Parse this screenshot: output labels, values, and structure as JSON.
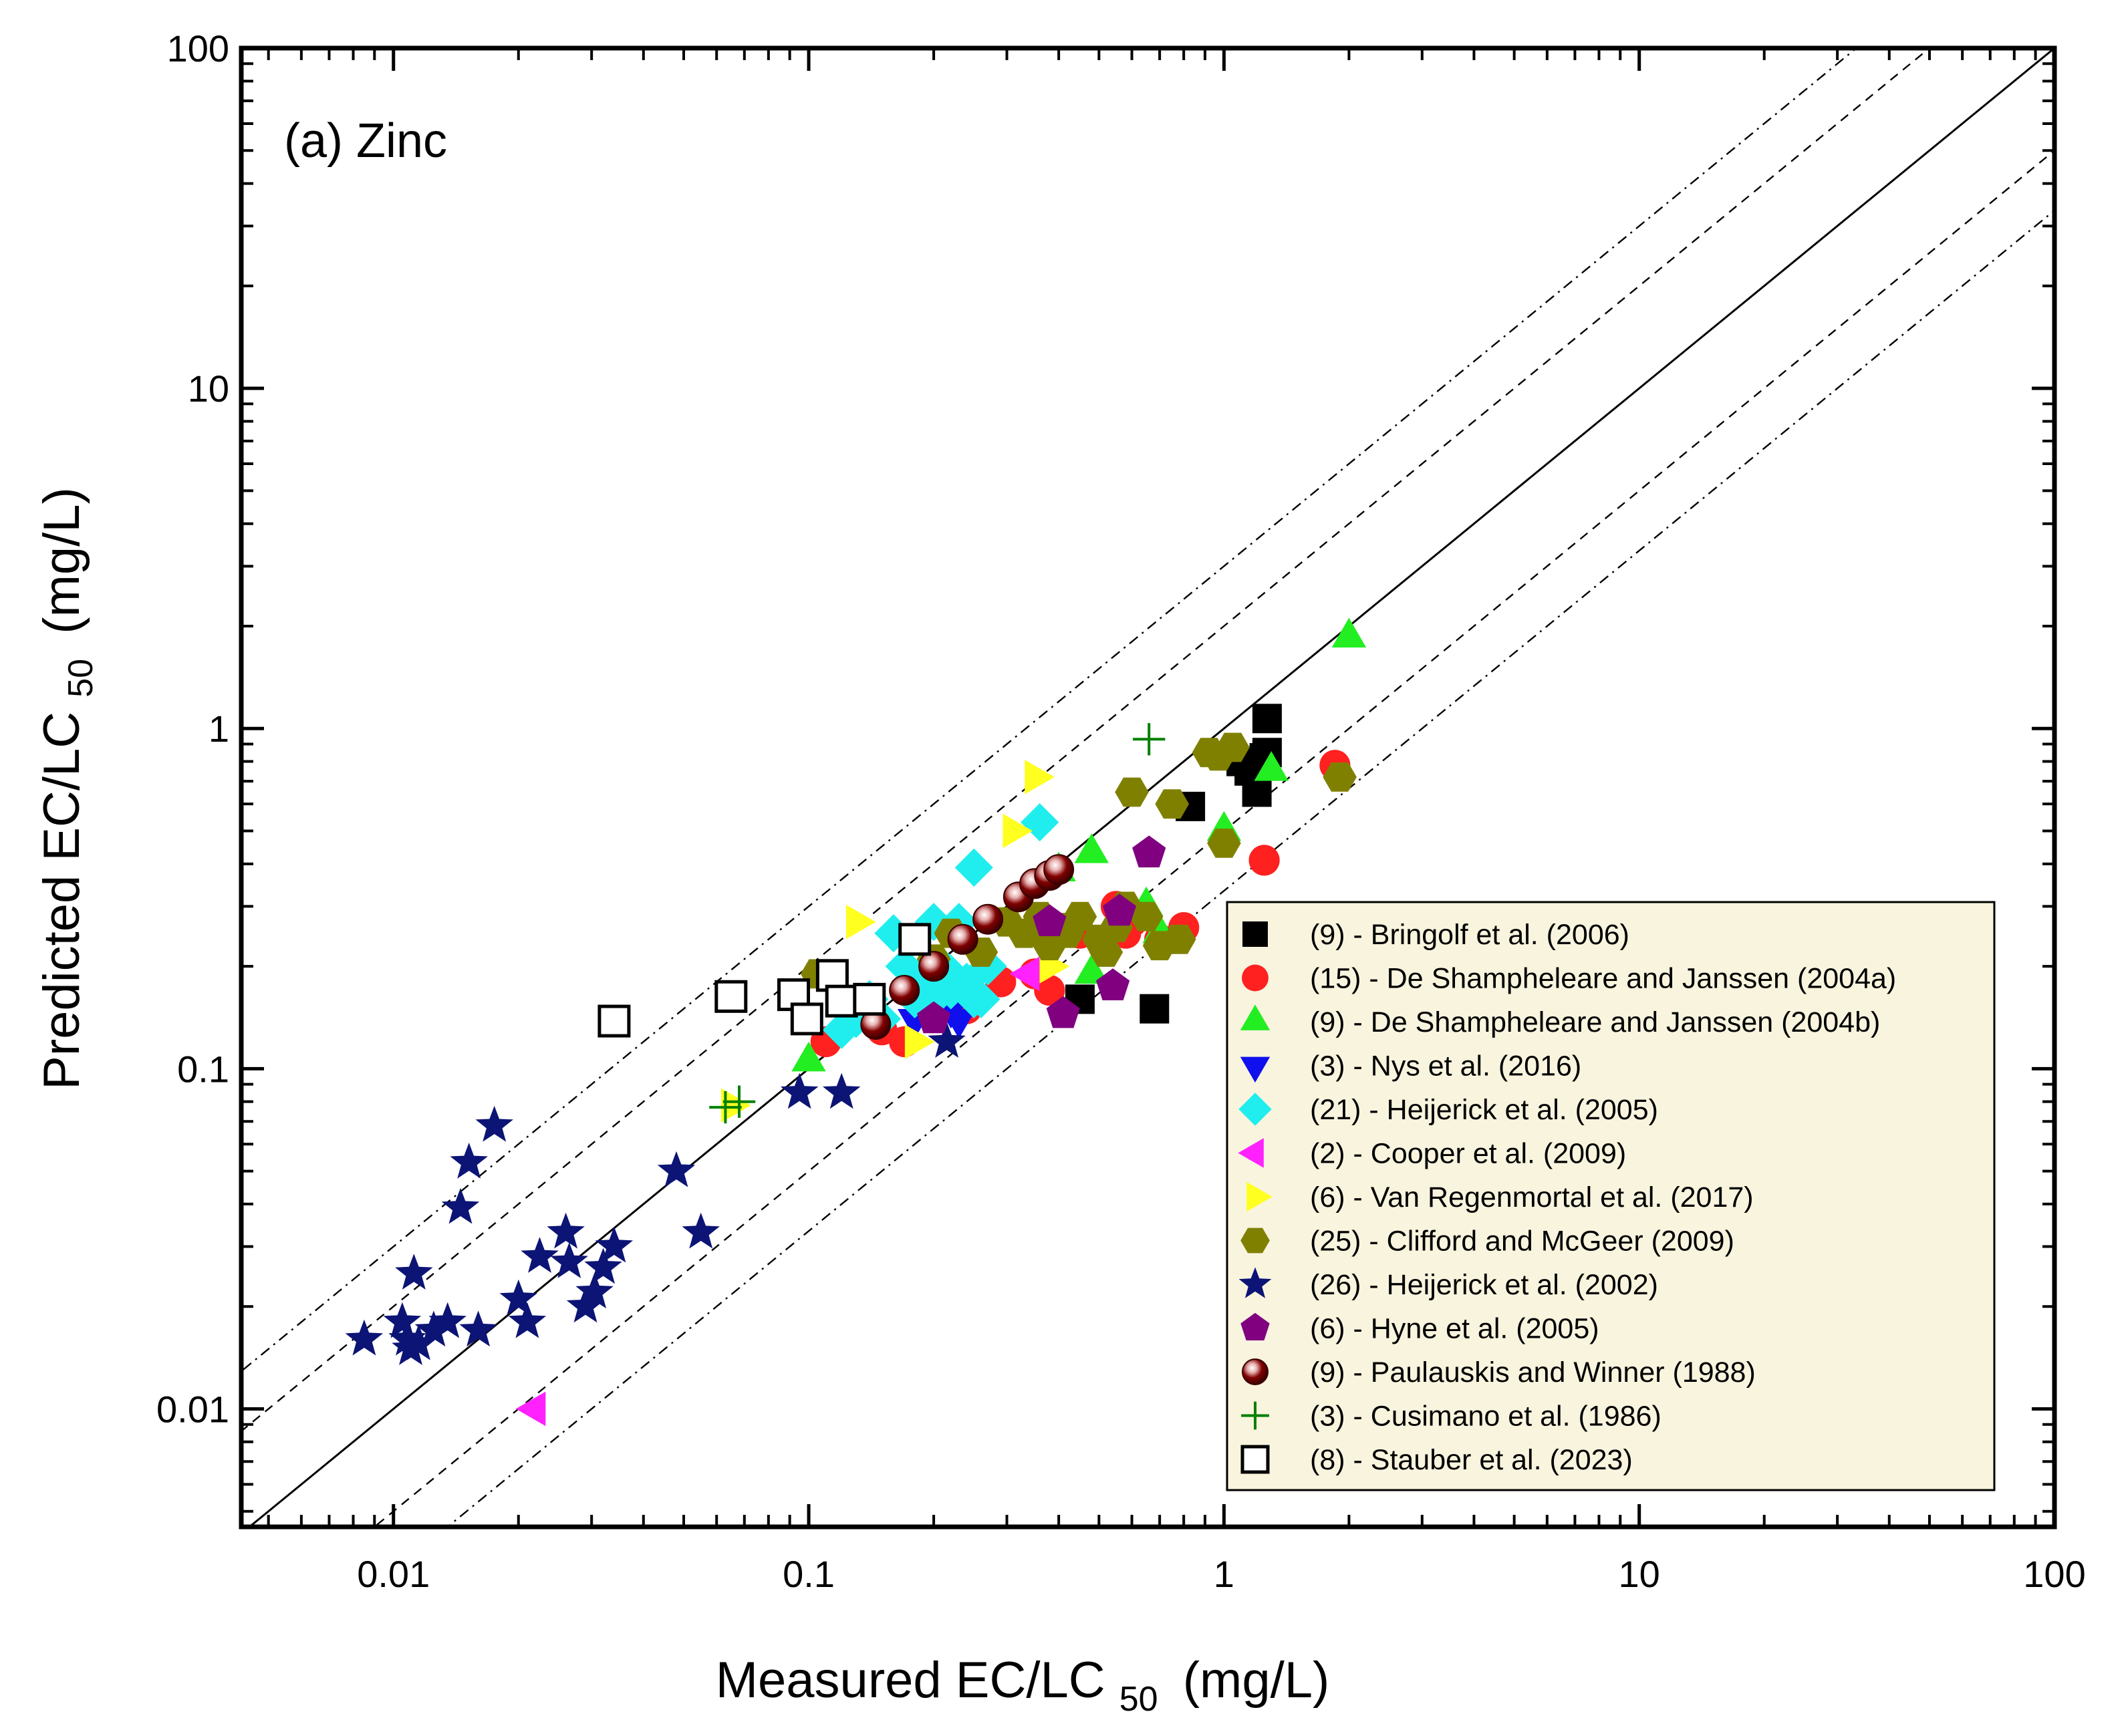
{
  "chart_data": {
    "type": "scatter",
    "title": "",
    "panel_label": "(a) Zinc",
    "xlabel": {
      "main": "Measured EC/LC",
      "sub": "50",
      "unit": "(mg/L)"
    },
    "ylabel": {
      "main": "Predicted EC/LC",
      "sub": "50",
      "unit": "(mg/L)"
    },
    "xscale": "log",
    "yscale": "log",
    "xlim": [
      0.0043,
      100
    ],
    "ylim": [
      0.0045,
      100
    ],
    "x_ticks": [
      {
        "value": 0.01,
        "label": "0.01"
      },
      {
        "value": 0.1,
        "label": "0.1"
      },
      {
        "value": 1,
        "label": "1"
      },
      {
        "value": 10,
        "label": "10"
      },
      {
        "value": 100,
        "label": "100"
      }
    ],
    "y_ticks": [
      {
        "value": 0.01,
        "label": "0.01"
      },
      {
        "value": 0.1,
        "label": "0.1"
      },
      {
        "value": 1,
        "label": "1"
      },
      {
        "value": 10,
        "label": "10"
      },
      {
        "value": 100,
        "label": "100"
      }
    ],
    "grid": false,
    "legend_position": "bottom-right",
    "legend_background": "#f8f4de",
    "reference_lines": [
      {
        "name": "1:1 line",
        "factor": 1,
        "style": "solid"
      },
      {
        "name": "factor 2 upper",
        "factor": 2,
        "style": "dashed"
      },
      {
        "name": "factor 2 lower",
        "factor": 0.5,
        "style": "dashed"
      },
      {
        "name": "factor 3 upper",
        "factor": 3,
        "style": "dashdot"
      },
      {
        "name": "factor 3 lower",
        "factor": 0.3333,
        "style": "dashdot"
      }
    ],
    "series": [
      {
        "name": "(9) - Bringolf et al. (2006)",
        "marker": "square",
        "color": "#000000",
        "points": [
          [
            0.45,
            0.16
          ],
          [
            0.68,
            0.15
          ],
          [
            0.83,
            0.59
          ],
          [
            1.1,
            0.8
          ],
          [
            1.15,
            0.75
          ],
          [
            1.2,
            0.65
          ],
          [
            1.27,
            1.07
          ],
          [
            1.27,
            0.85
          ],
          [
            1.25,
            0.82
          ]
        ]
      },
      {
        "name": "(15) - De Shampheleare and Janssen (2004a)",
        "marker": "circle",
        "color": "#ff2020",
        "points": [
          [
            0.11,
            0.12
          ],
          [
            0.15,
            0.13
          ],
          [
            0.17,
            0.12
          ],
          [
            0.24,
            0.15
          ],
          [
            0.29,
            0.18
          ],
          [
            0.35,
            0.19
          ],
          [
            0.38,
            0.17
          ],
          [
            0.45,
            0.25
          ],
          [
            0.55,
            0.3
          ],
          [
            0.58,
            0.25
          ],
          [
            0.6,
            0.27
          ],
          [
            0.7,
            0.24
          ],
          [
            0.8,
            0.26
          ],
          [
            1.25,
            0.41
          ],
          [
            1.85,
            0.78
          ]
        ]
      },
      {
        "name": "(9) - De Shampheleare and Janssen (2004b)",
        "marker": "triangle-up",
        "color": "#22ee22",
        "points": [
          [
            0.1,
            0.105
          ],
          [
            0.4,
            0.38
          ],
          [
            0.48,
            0.43
          ],
          [
            0.48,
            0.19
          ],
          [
            0.65,
            0.3
          ],
          [
            0.7,
            0.25
          ],
          [
            1.0,
            0.5
          ],
          [
            1.3,
            0.75
          ],
          [
            2.0,
            1.85
          ]
        ]
      },
      {
        "name": "(3) - Nys et al. (2016)",
        "marker": "triangle-down",
        "color": "#1010ee",
        "points": [
          [
            0.18,
            0.14
          ],
          [
            0.22,
            0.15
          ],
          [
            0.23,
            0.14
          ]
        ]
      },
      {
        "name": "(21) - Heijerick et al. (2005)",
        "marker": "diamond",
        "color": "#20eeee",
        "points": [
          [
            0.12,
            0.13
          ],
          [
            0.13,
            0.14
          ],
          [
            0.14,
            0.16
          ],
          [
            0.15,
            0.14
          ],
          [
            0.16,
            0.25
          ],
          [
            0.17,
            0.2
          ],
          [
            0.18,
            0.16
          ],
          [
            0.19,
            0.18
          ],
          [
            0.2,
            0.16
          ],
          [
            0.21,
            0.2
          ],
          [
            0.22,
            0.19
          ],
          [
            0.22,
            0.17
          ],
          [
            0.23,
            0.27
          ],
          [
            0.24,
            0.18
          ],
          [
            0.25,
            0.16
          ],
          [
            0.26,
            0.16
          ],
          [
            0.25,
            0.39
          ],
          [
            0.27,
            0.2
          ],
          [
            0.36,
            0.53
          ],
          [
            0.2,
            0.27
          ],
          [
            0.13,
            0.15
          ]
        ]
      },
      {
        "name": "(2) - Cooper et al. (2009)",
        "marker": "triangle-left",
        "color": "#ff22ff",
        "points": [
          [
            0.022,
            0.01
          ],
          [
            0.34,
            0.19
          ]
        ]
      },
      {
        "name": "(6) - Van Regenmortal et al. (2017)",
        "marker": "triangle-right",
        "color": "#ffff20",
        "points": [
          [
            0.065,
            0.078
          ],
          [
            0.13,
            0.27
          ],
          [
            0.18,
            0.12
          ],
          [
            0.31,
            0.5
          ],
          [
            0.35,
            0.72
          ],
          [
            0.38,
            0.2
          ]
        ]
      },
      {
        "name": "(25) - Clifford and McGeer (2009)",
        "marker": "hexagon",
        "color": "#808000",
        "points": [
          [
            0.105,
            0.19
          ],
          [
            0.2,
            0.21
          ],
          [
            0.22,
            0.25
          ],
          [
            0.26,
            0.22
          ],
          [
            0.3,
            0.27
          ],
          [
            0.33,
            0.25
          ],
          [
            0.36,
            0.28
          ],
          [
            0.38,
            0.23
          ],
          [
            0.4,
            0.26
          ],
          [
            0.42,
            0.25
          ],
          [
            0.45,
            0.28
          ],
          [
            0.5,
            0.24
          ],
          [
            0.52,
            0.22
          ],
          [
            0.58,
            0.3
          ],
          [
            0.6,
            0.65
          ],
          [
            0.65,
            0.28
          ],
          [
            0.7,
            0.23
          ],
          [
            0.75,
            0.6
          ],
          [
            0.78,
            0.24
          ],
          [
            0.92,
            0.85
          ],
          [
            0.97,
            0.83
          ],
          [
            1.05,
            0.88
          ],
          [
            1.0,
            0.46
          ],
          [
            1.9,
            0.72
          ],
          [
            0.55,
            0.26
          ]
        ]
      },
      {
        "name": "(26) - Heijerick et al. (2002)",
        "marker": "star",
        "color": "#0c1475",
        "points": [
          [
            0.0085,
            0.016
          ],
          [
            0.0105,
            0.018
          ],
          [
            0.011,
            0.015
          ],
          [
            0.0108,
            0.016
          ],
          [
            0.0112,
            0.025
          ],
          [
            0.0125,
            0.017
          ],
          [
            0.0135,
            0.018
          ],
          [
            0.0145,
            0.039
          ],
          [
            0.0152,
            0.053
          ],
          [
            0.016,
            0.017
          ],
          [
            0.0175,
            0.068
          ],
          [
            0.02,
            0.021
          ],
          [
            0.021,
            0.018
          ],
          [
            0.0225,
            0.028
          ],
          [
            0.026,
            0.033
          ],
          [
            0.0265,
            0.027
          ],
          [
            0.029,
            0.02
          ],
          [
            0.0305,
            0.022
          ],
          [
            0.032,
            0.026
          ],
          [
            0.034,
            0.03
          ],
          [
            0.048,
            0.05
          ],
          [
            0.055,
            0.033
          ],
          [
            0.095,
            0.085
          ],
          [
            0.12,
            0.085
          ],
          [
            0.215,
            0.12
          ],
          [
            0.0115,
            0.0155
          ]
        ]
      },
      {
        "name": "(6) - Hyne et al. (2005)",
        "marker": "pentagon",
        "color": "#800080",
        "points": [
          [
            0.2,
            0.14
          ],
          [
            0.38,
            0.27
          ],
          [
            0.41,
            0.145
          ],
          [
            0.54,
            0.175
          ],
          [
            0.56,
            0.29
          ],
          [
            0.66,
            0.43
          ]
        ]
      },
      {
        "name": "(9) - Paulauskis and Winner (1988)",
        "marker": "ball",
        "color": "#800000",
        "points": [
          [
            0.145,
            0.135
          ],
          [
            0.17,
            0.17
          ],
          [
            0.2,
            0.2
          ],
          [
            0.235,
            0.24
          ],
          [
            0.27,
            0.275
          ],
          [
            0.32,
            0.32
          ],
          [
            0.35,
            0.35
          ],
          [
            0.38,
            0.37
          ],
          [
            0.4,
            0.385
          ]
        ]
      },
      {
        "name": "(3) - Cusimano et al. (1986)",
        "marker": "plus",
        "color": "#008000",
        "points": [
          [
            0.063,
            0.077
          ],
          [
            0.068,
            0.08
          ],
          [
            0.66,
            0.93
          ]
        ]
      },
      {
        "name": "(8) - Stauber et al. (2023)",
        "marker": "open-square",
        "color": "#000000",
        "points": [
          [
            0.034,
            0.138
          ],
          [
            0.065,
            0.163
          ],
          [
            0.092,
            0.165
          ],
          [
            0.099,
            0.14
          ],
          [
            0.114,
            0.188
          ],
          [
            0.12,
            0.158
          ],
          [
            0.14,
            0.16
          ],
          [
            0.18,
            0.24
          ]
        ]
      }
    ]
  }
}
